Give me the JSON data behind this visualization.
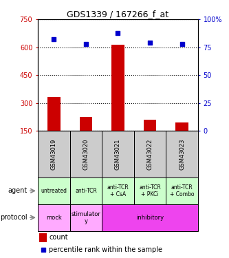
{
  "title": "GDS1339 / 167266_f_at",
  "samples": [
    "GSM43019",
    "GSM43020",
    "GSM43021",
    "GSM43022",
    "GSM43023"
  ],
  "counts": [
    330,
    225,
    615,
    210,
    195
  ],
  "percentiles": [
    82,
    78,
    88,
    79,
    78
  ],
  "ylim_left": [
    150,
    750
  ],
  "ylim_right": [
    0,
    100
  ],
  "yticks_left": [
    150,
    300,
    450,
    600,
    750
  ],
  "yticks_right": [
    0,
    25,
    50,
    75,
    100
  ],
  "ytick_labels_left": [
    "150",
    "300",
    "450",
    "600",
    "750"
  ],
  "ytick_labels_right": [
    "0",
    "25",
    "50",
    "75",
    "100%"
  ],
  "left_axis_color": "#cc0000",
  "right_axis_color": "#0000cc",
  "bar_color": "#cc0000",
  "dot_color": "#0000cc",
  "agent_labels": [
    "untreated",
    "anti-TCR",
    "anti-TCR\n+ CsA",
    "anti-TCR\n+ PKCi",
    "anti-TCR\n+ Combo"
  ],
  "agent_bg_color": "#ccffcc",
  "protocol_defs": [
    [
      0,
      0,
      "mock",
      "#ffaaff"
    ],
    [
      1,
      1,
      "stimulator\ny",
      "#ffaaff"
    ],
    [
      2,
      4,
      "inhibitory",
      "#ee44ee"
    ]
  ],
  "sample_bg_color": "#cccccc",
  "legend_count_color": "#cc0000",
  "legend_pct_color": "#0000cc"
}
